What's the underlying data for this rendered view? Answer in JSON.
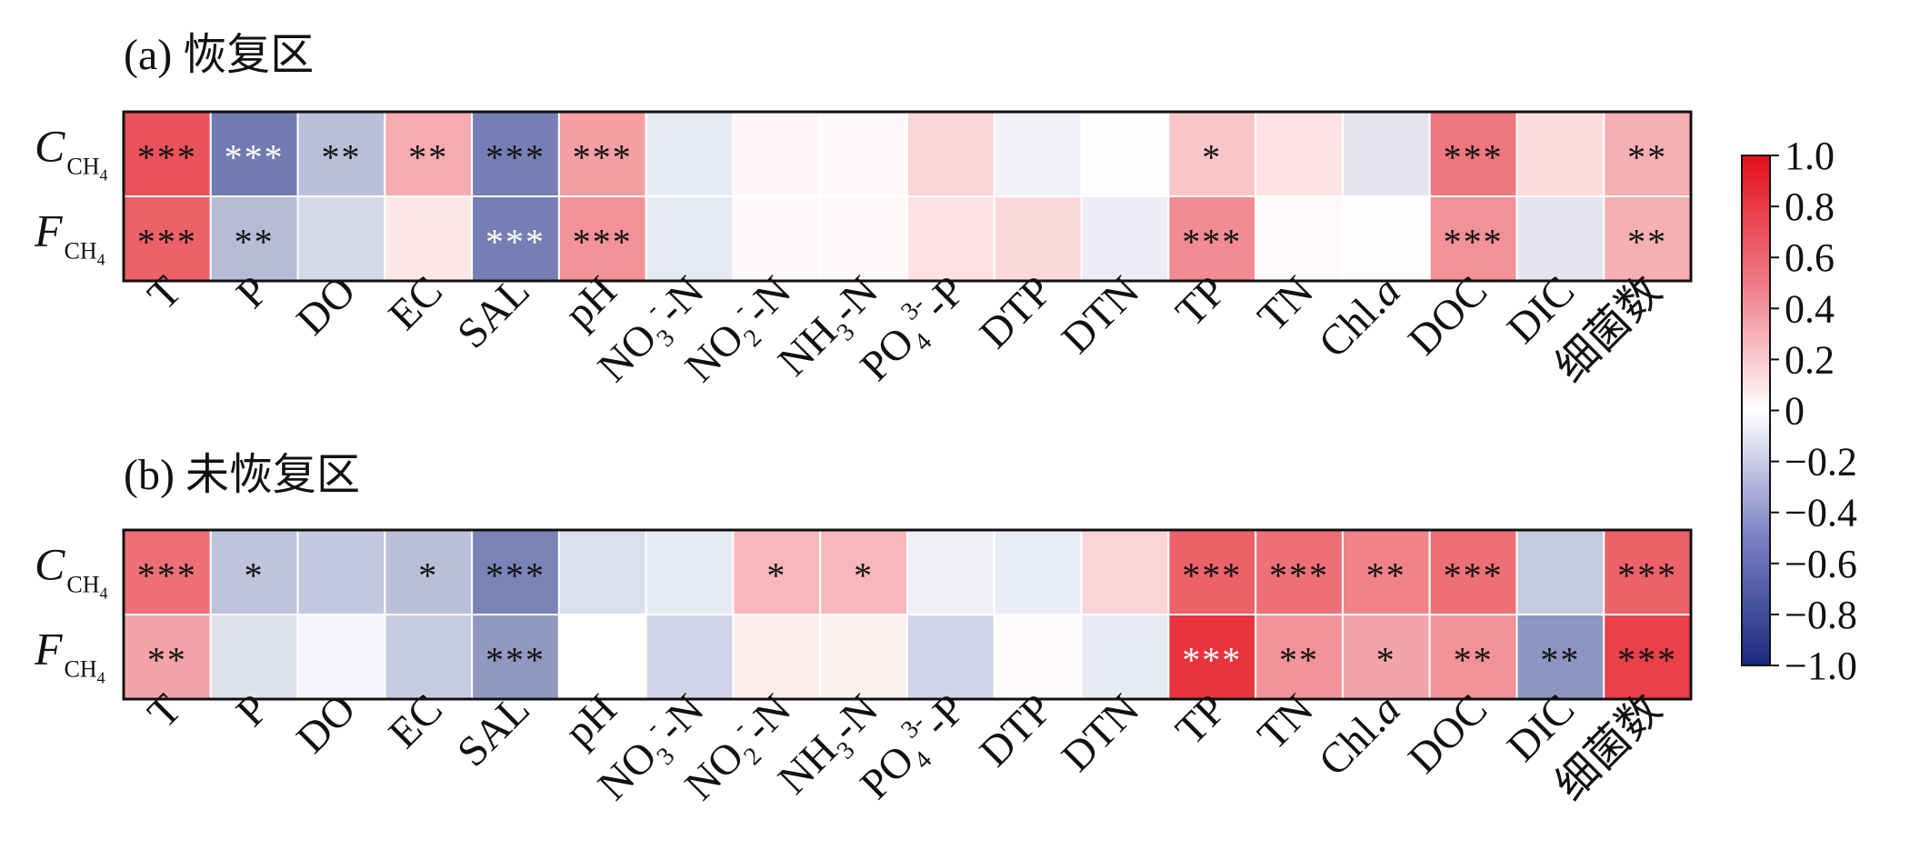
{
  "chart_data": [
    {
      "type": "heatmap",
      "title": "(a) 恢复区",
      "rows": [
        {
          "base": "C",
          "sub": "CH",
          "subsub": "4"
        },
        {
          "base": "F",
          "sub": "CH",
          "subsub": "4"
        }
      ],
      "columns": [
        {
          "parts": [
            [
              "T",
              "n"
            ]
          ]
        },
        {
          "parts": [
            [
              "P",
              "n"
            ]
          ]
        },
        {
          "parts": [
            [
              "DO",
              "n"
            ]
          ]
        },
        {
          "parts": [
            [
              "EC",
              "n"
            ]
          ]
        },
        {
          "parts": [
            [
              "SAL",
              "n"
            ]
          ]
        },
        {
          "parts": [
            [
              "pH",
              "n"
            ]
          ]
        },
        {
          "parts": [
            [
              "NO",
              "n"
            ],
            [
              "3",
              "sub"
            ],
            [
              "-",
              "sup"
            ],
            [
              "-N",
              "n"
            ]
          ]
        },
        {
          "parts": [
            [
              "NO",
              "n"
            ],
            [
              "2",
              "sub"
            ],
            [
              "-",
              "sup"
            ],
            [
              "-N",
              "n"
            ]
          ]
        },
        {
          "parts": [
            [
              "NH",
              "n"
            ],
            [
              "3",
              "sub"
            ],
            [
              "-N",
              "n"
            ]
          ]
        },
        {
          "parts": [
            [
              "PO",
              "n"
            ],
            [
              "4",
              "sub"
            ],
            [
              "3-",
              "sup"
            ],
            [
              "-P",
              "n"
            ]
          ]
        },
        {
          "parts": [
            [
              "DTP",
              "n"
            ]
          ]
        },
        {
          "parts": [
            [
              "DTN",
              "n"
            ]
          ]
        },
        {
          "parts": [
            [
              "TP",
              "n"
            ]
          ]
        },
        {
          "parts": [
            [
              "TN",
              "n"
            ]
          ]
        },
        {
          "parts": [
            [
              "Chl.",
              "n"
            ],
            [
              "a",
              "i"
            ]
          ]
        },
        {
          "parts": [
            [
              "DOC",
              "n"
            ]
          ]
        },
        {
          "parts": [
            [
              "DIC",
              "n"
            ]
          ]
        },
        {
          "parts": [
            [
              "细菌数",
              "n"
            ]
          ]
        }
      ],
      "values": [
        [
          0.72,
          -0.62,
          -0.3,
          0.35,
          -0.6,
          0.4,
          -0.1,
          0.04,
          0.03,
          0.18,
          -0.06,
          -0.01,
          0.24,
          0.12,
          -0.12,
          0.57,
          0.15,
          0.33
        ],
        [
          0.66,
          -0.32,
          -0.18,
          0.1,
          -0.6,
          0.45,
          -0.1,
          0.03,
          0.03,
          0.12,
          0.16,
          -0.08,
          0.48,
          0.02,
          0.01,
          0.46,
          -0.12,
          0.33
        ]
      ],
      "significance": [
        [
          "***",
          "***",
          "**",
          "**",
          "***",
          "***",
          "",
          "",
          "",
          "",
          "",
          "",
          "*",
          "",
          "",
          "***",
          "",
          "**"
        ],
        [
          "***",
          "**",
          "",
          "",
          "***",
          "***",
          "",
          "",
          "",
          "",
          "",
          "",
          "***",
          "",
          "",
          "***",
          "",
          "**"
        ]
      ],
      "white_marks": [
        [
          0,
          1
        ],
        [
          1,
          4
        ]
      ]
    },
    {
      "type": "heatmap",
      "title": "(b) 未恢复区",
      "rows": [
        {
          "base": "C",
          "sub": "CH",
          "subsub": "4"
        },
        {
          "base": "F",
          "sub": "CH",
          "subsub": "4"
        }
      ],
      "columns": [
        {
          "parts": [
            [
              "T",
              "n"
            ]
          ]
        },
        {
          "parts": [
            [
              "P",
              "n"
            ]
          ]
        },
        {
          "parts": [
            [
              "DO",
              "n"
            ]
          ]
        },
        {
          "parts": [
            [
              "EC",
              "n"
            ]
          ]
        },
        {
          "parts": [
            [
              "SAL",
              "n"
            ]
          ]
        },
        {
          "parts": [
            [
              "pH",
              "n"
            ]
          ]
        },
        {
          "parts": [
            [
              "NO",
              "n"
            ],
            [
              "3",
              "sub"
            ],
            [
              "-",
              "sup"
            ],
            [
              "-N",
              "n"
            ]
          ]
        },
        {
          "parts": [
            [
              "NO",
              "n"
            ],
            [
              "2",
              "sub"
            ],
            [
              "-",
              "sup"
            ],
            [
              "-N",
              "n"
            ]
          ]
        },
        {
          "parts": [
            [
              "NH",
              "n"
            ],
            [
              "3",
              "sub"
            ],
            [
              "-N",
              "n"
            ]
          ]
        },
        {
          "parts": [
            [
              "PO",
              "n"
            ],
            [
              "4",
              "sub"
            ],
            [
              "3-",
              "sup"
            ],
            [
              "-P",
              "n"
            ]
          ]
        },
        {
          "parts": [
            [
              "DTP",
              "n"
            ]
          ]
        },
        {
          "parts": [
            [
              "DTN",
              "n"
            ]
          ]
        },
        {
          "parts": [
            [
              "TP",
              "n"
            ]
          ]
        },
        {
          "parts": [
            [
              "TN",
              "n"
            ]
          ]
        },
        {
          "parts": [
            [
              "Chl.",
              "n"
            ],
            [
              "a",
              "i"
            ]
          ]
        },
        {
          "parts": [
            [
              "DOC",
              "n"
            ]
          ]
        },
        {
          "parts": [
            [
              "DIC",
              "n"
            ]
          ]
        },
        {
          "parts": [
            [
              "细菌数",
              "n"
            ]
          ]
        }
      ],
      "values": [
        [
          0.6,
          -0.28,
          -0.26,
          -0.3,
          -0.58,
          -0.15,
          -0.1,
          0.3,
          0.3,
          -0.07,
          -0.09,
          0.18,
          0.66,
          0.6,
          0.52,
          0.6,
          -0.25,
          0.66
        ],
        [
          0.38,
          -0.14,
          -0.04,
          -0.24,
          -0.48,
          0.0,
          -0.2,
          0.08,
          0.06,
          -0.2,
          0.02,
          -0.1,
          0.85,
          0.45,
          0.38,
          0.46,
          -0.5,
          0.8
        ]
      ],
      "significance": [
        [
          "***",
          "*",
          "",
          "*",
          "***",
          "",
          "",
          "*",
          "*",
          "",
          "",
          "",
          "***",
          "***",
          "**",
          "***",
          "",
          "***"
        ],
        [
          "**",
          "",
          "",
          "",
          "***",
          "",
          "",
          "",
          "",
          "",
          "",
          "",
          "***",
          "**",
          "*",
          "**",
          "**",
          "***"
        ]
      ],
      "white_marks": [
        [
          1,
          12
        ]
      ]
    }
  ],
  "colorbar": {
    "min": -1.0,
    "max": 1.0,
    "ticks": [
      "1.0",
      "0.8",
      "0.6",
      "0.4",
      "0.2",
      "0",
      "−0.2",
      "−0.4",
      "−0.6",
      "−0.8",
      "−1.0"
    ],
    "tick_values": [
      1.0,
      0.8,
      0.6,
      0.4,
      0.2,
      0.0,
      -0.2,
      -0.4,
      -0.6,
      -0.8,
      -1.0
    ],
    "colors": {
      "min": "#1a2a80",
      "mid": "#ffffff",
      "max": "#e3101c"
    }
  }
}
